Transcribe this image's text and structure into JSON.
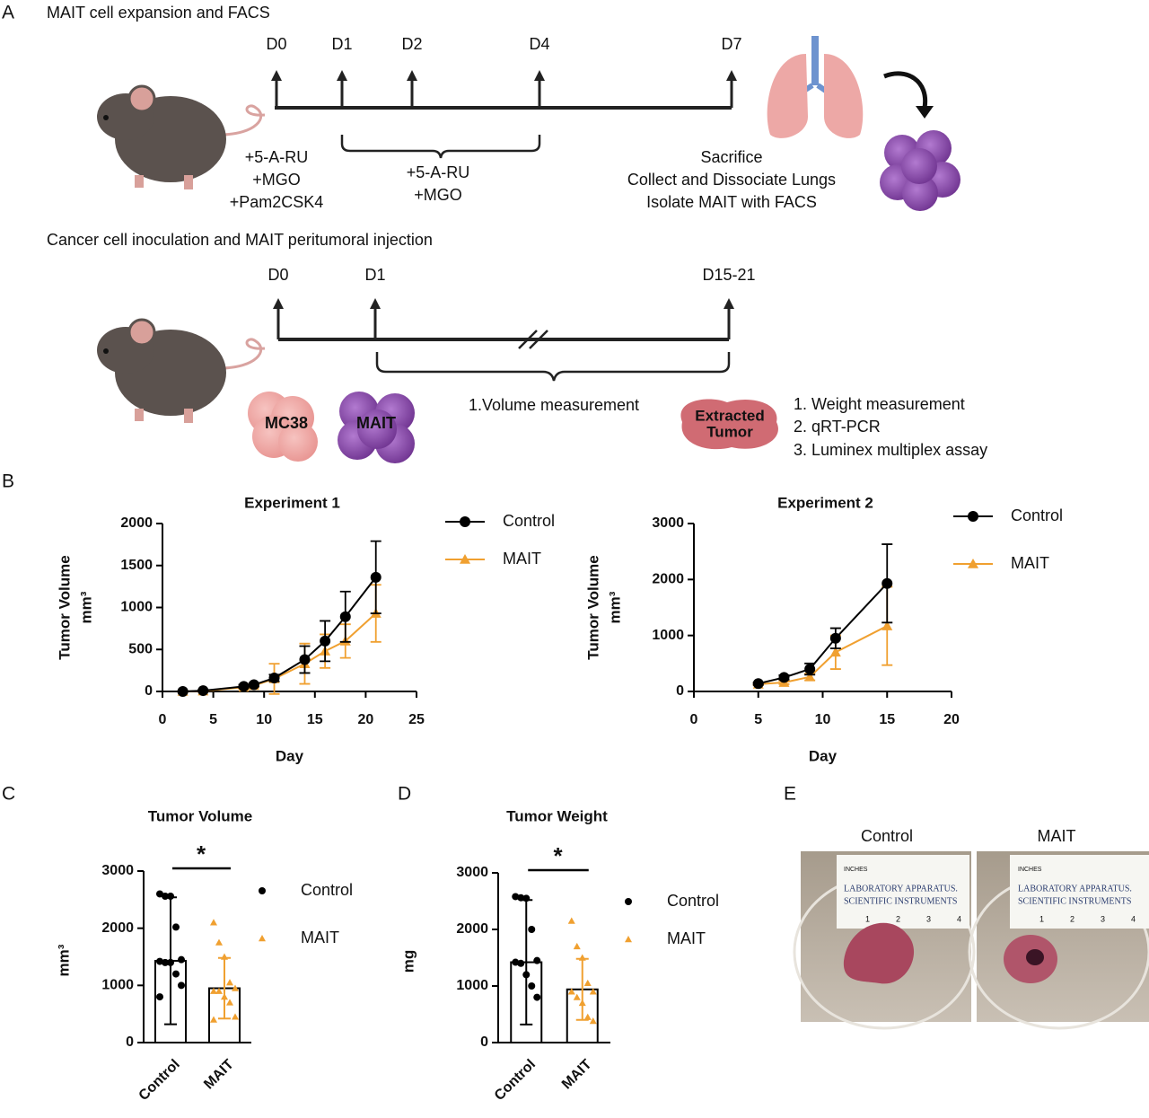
{
  "panel_labels": [
    "A",
    "B",
    "C",
    "D",
    "E"
  ],
  "diagram": {
    "timeline_1": {
      "title": "MAIT cell expansion and FACS",
      "days": [
        "D0",
        "D1",
        "D2",
        "D4",
        "D7"
      ],
      "notes": [
        [
          "+5-A-RU",
          "+MGO",
          "+Pam2CSK4"
        ],
        [
          "+5-A-RU",
          "+MGO"
        ],
        [
          "Sacrifice",
          "Collect and Dissociate Lungs",
          "Isolate MAIT with FACS"
        ]
      ]
    },
    "timeline_2": {
      "title": "Cancer cell inoculation and MAIT peritumoral injection",
      "days": [
        "D0",
        "D1",
        "D15-21"
      ],
      "notes": [
        "1.Volume measurement"
      ],
      "cells": [
        "MC38",
        "MAIT"
      ],
      "tumor": [
        "Extracted",
        "Tumor"
      ],
      "assays": [
        "1. Weight measurement",
        "2. qRT-PCR",
        "3. Luminex multiplex assay"
      ]
    }
  },
  "chart_data": [
    {
      "type": "line",
      "title": "Experiment 1",
      "xlabel": "Day",
      "ylabel": [
        "Tumor Volume",
        "mm³"
      ],
      "x": [
        2,
        4,
        8,
        9,
        11,
        14,
        16,
        18,
        21
      ],
      "xlim": [
        0,
        25
      ],
      "xticks": [
        0,
        5,
        10,
        15,
        20,
        25
      ],
      "ylim": [
        0,
        2000
      ],
      "yticks": [
        0,
        500,
        1000,
        1500,
        2000
      ],
      "series": [
        {
          "name": "Control",
          "color": "#000000",
          "marker": "circle",
          "values": [
            0,
            10,
            60,
            80,
            160,
            380,
            600,
            890,
            1360
          ],
          "errors": [
            5,
            10,
            20,
            20,
            40,
            160,
            240,
            300,
            430
          ]
        },
        {
          "name": "MAIT",
          "color": "#f0a030",
          "marker": "triangle",
          "values": [
            0,
            5,
            50,
            70,
            150,
            330,
            480,
            600,
            930
          ],
          "errors": [
            5,
            10,
            20,
            20,
            180,
            240,
            200,
            200,
            340
          ]
        }
      ]
    },
    {
      "type": "line",
      "title": "Experiment 2",
      "xlabel": "Day",
      "ylabel": [
        "Tumor Volume",
        "mm³"
      ],
      "x": [
        5,
        7,
        9,
        11,
        15
      ],
      "xlim": [
        0,
        20
      ],
      "xticks": [
        0,
        5,
        10,
        15,
        20
      ],
      "ylim": [
        0,
        3000
      ],
      "yticks": [
        0,
        1000,
        2000,
        3000
      ],
      "series": [
        {
          "name": "Control",
          "color": "#000000",
          "marker": "circle",
          "values": [
            140,
            250,
            400,
            950,
            1930
          ],
          "errors": [
            20,
            40,
            100,
            180,
            700
          ]
        },
        {
          "name": "MAIT",
          "color": "#f0a030",
          "marker": "triangle",
          "values": [
            130,
            160,
            260,
            700,
            1170
          ],
          "errors": [
            20,
            30,
            60,
            300,
            700
          ]
        }
      ]
    },
    {
      "type": "bar",
      "title": "Tumor Volume",
      "ylabel": "mm³",
      "significance": "*",
      "categories": [
        "Control",
        "MAIT"
      ],
      "colors": [
        "#000000",
        "#f0a030"
      ],
      "markers": [
        "circle",
        "triangle"
      ],
      "values": [
        1430,
        950
      ],
      "errors": [
        1110,
        530
      ],
      "points": [
        [
          2600,
          2560,
          2560,
          2020,
          1450,
          1420,
          1400,
          1400,
          1200,
          1000,
          800
        ],
        [
          2100,
          1750,
          1500,
          1050,
          950,
          900,
          900,
          800,
          700,
          450,
          400
        ]
      ],
      "ylim": [
        0,
        3000
      ],
      "yticks": [
        0,
        1000,
        2000,
        3000
      ]
    },
    {
      "type": "bar",
      "title": "Tumor Weight",
      "ylabel": "mg",
      "significance": "*",
      "categories": [
        "Control",
        "MAIT"
      ],
      "colors": [
        "#000000",
        "#f0a030"
      ],
      "markers": [
        "circle",
        "triangle"
      ],
      "values": [
        1420,
        940
      ],
      "errors": [
        1100,
        540
      ],
      "points": [
        [
          2580,
          2560,
          2550,
          2000,
          1450,
          1420,
          1400,
          1200,
          1000,
          800
        ],
        [
          2150,
          1700,
          1500,
          1050,
          900,
          900,
          800,
          700,
          450,
          380
        ]
      ],
      "ylim": [
        0,
        3000
      ],
      "yticks": [
        0,
        1000,
        2000,
        3000
      ]
    }
  ],
  "photo": {
    "labels": [
      "Control",
      "MAIT"
    ],
    "ruler": [
      "INCHES",
      "LABORATORY APPARATUS.",
      "SCIENTIFIC INSTRUMENTS"
    ],
    "ruler_numbers": [
      "1",
      "2",
      "3",
      "4"
    ]
  }
}
